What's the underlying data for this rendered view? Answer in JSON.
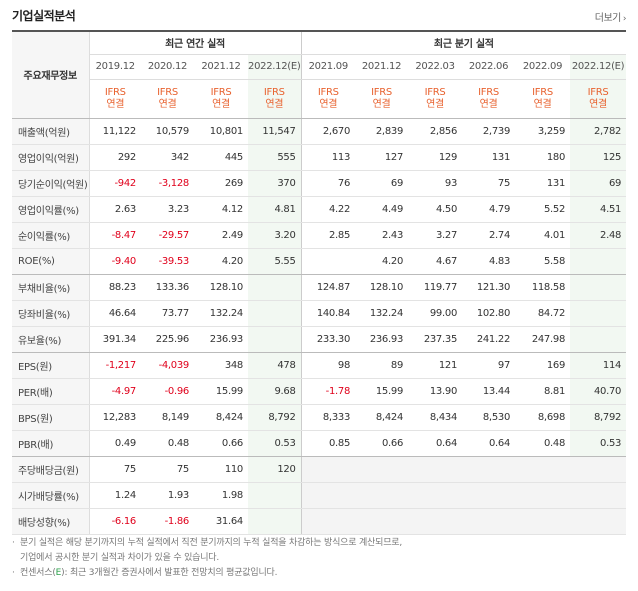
{
  "header": {
    "title": "기업실적분석",
    "more_label": "더보기",
    "more_arrow": "›"
  },
  "table": {
    "row_header_label": "주요재무정보",
    "annual_group_label": "최근 연간 실적",
    "quarter_group_label": "최근 분기 실적",
    "annual_periods": [
      "2019.12",
      "2020.12",
      "2021.12",
      "2022.12(E)"
    ],
    "quarter_periods": [
      "2021.09",
      "2021.12",
      "2022.03",
      "2022.06",
      "2022.09",
      "2022.12(E)"
    ],
    "basis_line1": "IFRS",
    "basis_line2": "연결",
    "rows": [
      {
        "label": "매출액(억원)",
        "annual": [
          "11,122",
          "10,579",
          "10,801",
          "11,547"
        ],
        "quarter": [
          "2,670",
          "2,839",
          "2,856",
          "2,739",
          "3,259",
          "2,782"
        ]
      },
      {
        "label": "영업이익(억원)",
        "annual": [
          "292",
          "342",
          "445",
          "555"
        ],
        "quarter": [
          "113",
          "127",
          "129",
          "131",
          "180",
          "125"
        ]
      },
      {
        "label": "당기순이익(억원)",
        "annual": [
          "-942",
          "-3,128",
          "269",
          "370"
        ],
        "quarter": [
          "76",
          "69",
          "93",
          "75",
          "131",
          "69"
        ]
      },
      {
        "label": "영업이익률(%)",
        "annual": [
          "2.63",
          "3.23",
          "4.12",
          "4.81"
        ],
        "quarter": [
          "4.22",
          "4.49",
          "4.50",
          "4.79",
          "5.52",
          "4.51"
        ]
      },
      {
        "label": "순이익률(%)",
        "annual": [
          "-8.47",
          "-29.57",
          "2.49",
          "3.20"
        ],
        "quarter": [
          "2.85",
          "2.43",
          "3.27",
          "2.74",
          "4.01",
          "2.48"
        ]
      },
      {
        "label": "ROE(%)",
        "annual": [
          "-9.40",
          "-39.53",
          "4.20",
          "5.55"
        ],
        "quarter": [
          "",
          "4.20",
          "4.67",
          "4.83",
          "5.58",
          ""
        ]
      },
      {
        "label": "부채비율(%)",
        "annual": [
          "88.23",
          "133.36",
          "128.10",
          ""
        ],
        "quarter": [
          "124.87",
          "128.10",
          "119.77",
          "121.30",
          "118.58",
          ""
        ]
      },
      {
        "label": "당좌비율(%)",
        "annual": [
          "46.64",
          "73.77",
          "132.24",
          ""
        ],
        "quarter": [
          "140.84",
          "132.24",
          "99.00",
          "102.80",
          "84.72",
          ""
        ]
      },
      {
        "label": "유보율(%)",
        "annual": [
          "391.34",
          "225.96",
          "236.93",
          ""
        ],
        "quarter": [
          "233.30",
          "236.93",
          "237.35",
          "241.22",
          "247.98",
          ""
        ]
      },
      {
        "label": "EPS(원)",
        "annual": [
          "-1,217",
          "-4,039",
          "348",
          "478"
        ],
        "quarter": [
          "98",
          "89",
          "121",
          "97",
          "169",
          "114"
        ]
      },
      {
        "label": "PER(배)",
        "annual": [
          "-4.97",
          "-0.96",
          "15.99",
          "9.68"
        ],
        "quarter": [
          "-1.78",
          "15.99",
          "13.90",
          "13.44",
          "8.81",
          "40.70"
        ]
      },
      {
        "label": "BPS(원)",
        "annual": [
          "12,283",
          "8,149",
          "8,424",
          "8,792"
        ],
        "quarter": [
          "8,333",
          "8,424",
          "8,434",
          "8,530",
          "8,698",
          "8,792"
        ]
      },
      {
        "label": "PBR(배)",
        "annual": [
          "0.49",
          "0.48",
          "0.66",
          "0.53"
        ],
        "quarter": [
          "0.85",
          "0.66",
          "0.64",
          "0.64",
          "0.48",
          "0.53"
        ]
      },
      {
        "label": "주당배당금(원)",
        "annual": [
          "75",
          "75",
          "110",
          "120"
        ],
        "quarter": null
      },
      {
        "label": "시가배당률(%)",
        "annual": [
          "1.24",
          "1.93",
          "1.98",
          ""
        ],
        "quarter": null
      },
      {
        "label": "배당성향(%)",
        "annual": [
          "-6.16",
          "-1.86",
          "31.64",
          ""
        ],
        "quarter": null
      }
    ]
  },
  "notes": {
    "line1": "분기 실적은 해당 분기까지의 누적 실적에서 직전 분기까지의 누적 실적을 차감하는 방식으로 계산되므로,",
    "line2": "기업에서 공시한 분기 실적과 차이가 있을 수 있습니다.",
    "line3_prefix": "컨센서스(",
    "line3_e": "E",
    "line3_suffix": "): 최근 3개월간 증권사에서 발표한 전망치의 평균값입니다."
  }
}
